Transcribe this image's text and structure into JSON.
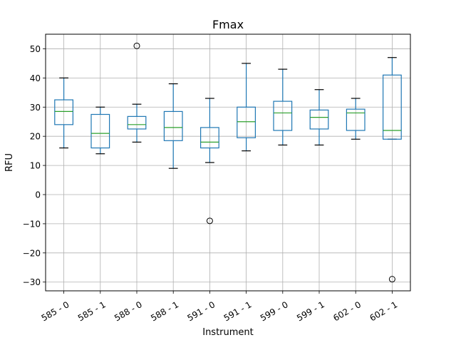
{
  "chart_data": {
    "type": "boxplot",
    "title": "Fmax",
    "xlabel": "Instrument",
    "ylabel": "RFU",
    "ylim": [
      -33,
      55
    ],
    "yticks": [
      -30,
      -20,
      -10,
      0,
      10,
      20,
      30,
      40,
      50
    ],
    "grid": true,
    "categories": [
      "585 - 0",
      "585 - 1",
      "588 - 0",
      "588 - 1",
      "591 - 0",
      "591 - 1",
      "599 - 0",
      "599 - 1",
      "602 - 0",
      "602 - 1"
    ],
    "boxes": [
      {
        "category": "585 - 0",
        "whisker_low": 16,
        "q1": 24,
        "median": 28.5,
        "q3": 32.5,
        "whisker_high": 40,
        "outliers": []
      },
      {
        "category": "585 - 1",
        "whisker_low": 14,
        "q1": 16,
        "median": 21,
        "q3": 27.5,
        "whisker_high": 30,
        "outliers": []
      },
      {
        "category": "588 - 0",
        "whisker_low": 18,
        "q1": 22.5,
        "median": 24,
        "q3": 26.8,
        "whisker_high": 31,
        "outliers": [
          51
        ]
      },
      {
        "category": "588 - 1",
        "whisker_low": 9,
        "q1": 18.5,
        "median": 23,
        "q3": 28.5,
        "whisker_high": 38,
        "outliers": []
      },
      {
        "category": "591 - 0",
        "whisker_low": 11,
        "q1": 16,
        "median": 18,
        "q3": 23,
        "whisker_high": 33,
        "outliers": [
          -9
        ]
      },
      {
        "category": "591 - 1",
        "whisker_low": 15,
        "q1": 19.5,
        "median": 25,
        "q3": 30,
        "whisker_high": 45,
        "outliers": []
      },
      {
        "category": "599 - 0",
        "whisker_low": 17,
        "q1": 22,
        "median": 28,
        "q3": 32,
        "whisker_high": 43,
        "outliers": []
      },
      {
        "category": "599 - 1",
        "whisker_low": 17,
        "q1": 22.5,
        "median": 26.5,
        "q3": 29,
        "whisker_high": 36,
        "outliers": []
      },
      {
        "category": "602 - 0",
        "whisker_low": 19,
        "q1": 22,
        "median": 28,
        "q3": 29.3,
        "whisker_high": 33,
        "outliers": []
      },
      {
        "category": "602 - 1",
        "whisker_low": 19,
        "q1": 19,
        "median": 22,
        "q3": 41,
        "whisker_high": 47,
        "outliers": [
          -29
        ]
      }
    ],
    "colors": {
      "box": "#1f77b4",
      "median": "#2ca02c",
      "whisker": "#000000",
      "grid": "#b0b0b0"
    }
  }
}
